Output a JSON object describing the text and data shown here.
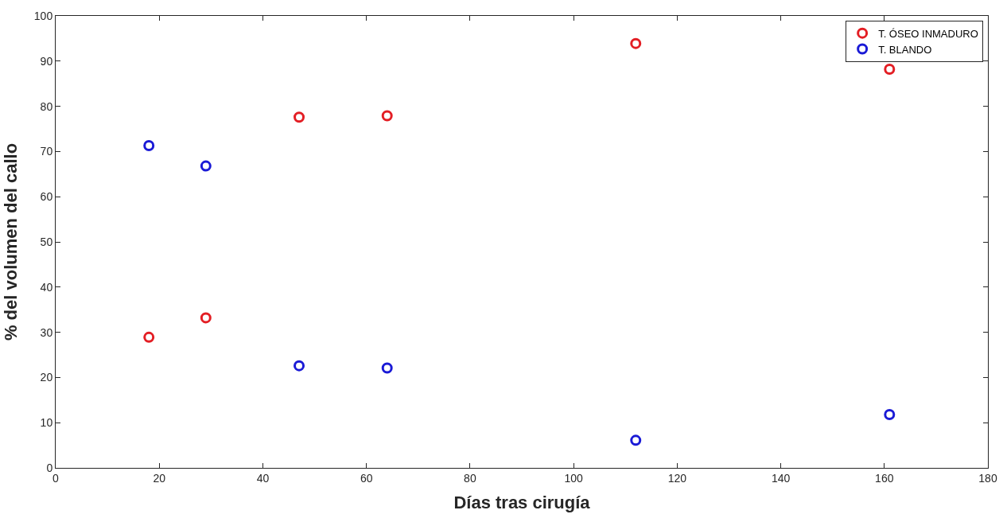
{
  "chart_data": {
    "type": "scatter",
    "xlabel": "Días tras cirugía",
    "ylabel": "% del volumen del callo",
    "x": [
      18,
      29,
      47,
      64,
      112,
      161
    ],
    "series": [
      {
        "name": "T. ÓSEO INMADURO",
        "color": "#e31e24",
        "values": [
          28.9,
          33.2,
          77.6,
          77.9,
          93.9,
          88.2
        ]
      },
      {
        "name": "T. BLANDO",
        "color": "#1a1ad6",
        "values": [
          71.3,
          66.8,
          22.6,
          22.1,
          6.1,
          11.8
        ]
      }
    ],
    "xlim": [
      0,
      180
    ],
    "xticks": [
      0,
      20,
      40,
      60,
      80,
      100,
      120,
      140,
      160,
      180
    ],
    "ylim": [
      0,
      100
    ],
    "yticks": [
      0,
      10,
      20,
      30,
      40,
      50,
      60,
      70,
      80,
      90,
      100
    ],
    "marker": "circle",
    "legend": "top right"
  }
}
